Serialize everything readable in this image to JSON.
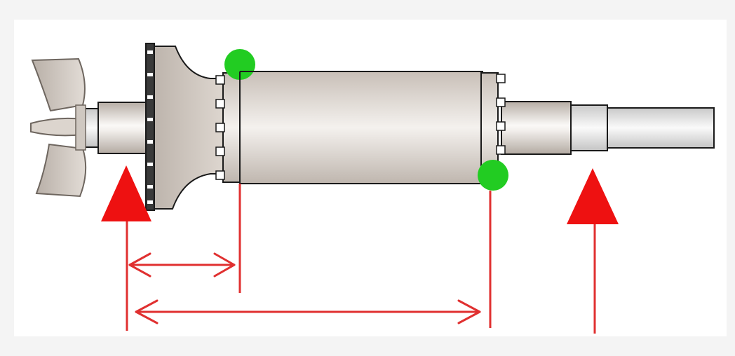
{
  "colors": {
    "background": "#f4f4f4",
    "panel": "#ffffff",
    "metal_light": "#f2efec",
    "metal_mid": "#d8d2cc",
    "metal_dark": "#a9a199",
    "outline": "#1a1a1a",
    "support_arrow": "#ee1111",
    "dimension_line": "#e03030",
    "balance_point": "#22cc22"
  },
  "diagram": {
    "parts": [
      "fan-impeller",
      "end-disc",
      "rotor-core",
      "shaft"
    ],
    "support_markers": [
      "left-support-arrow",
      "right-support-arrow"
    ],
    "balance_points": [
      "balance-point-top-left",
      "balance-point-bottom-right"
    ],
    "dimensions": [
      "dimension-short",
      "dimension-long"
    ]
  }
}
